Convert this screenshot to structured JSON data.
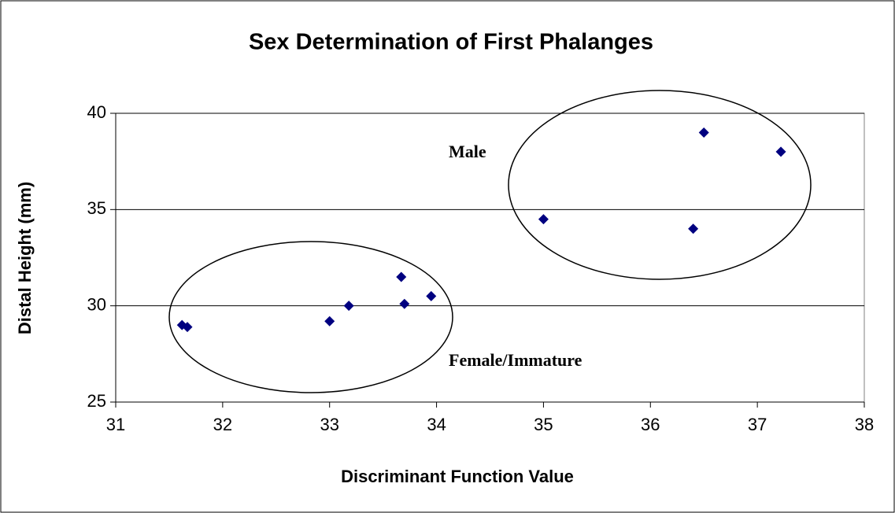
{
  "chart_data": {
    "type": "scatter",
    "title": "Sex Determination of First Phalanges",
    "x_label": "Discriminant Function Value",
    "y_label": "Distal Height (mm)",
    "annotations": [
      "Male",
      "Female/Immature"
    ],
    "x": [
      31.62,
      31.67,
      33.0,
      33.18,
      33.67,
      33.7,
      33.95,
      35.0,
      36.4,
      36.5,
      37.22
    ],
    "values": [
      29.0,
      28.9,
      29.2,
      30.0,
      31.5,
      30.1,
      30.5,
      34.5,
      34.0,
      39.0,
      38.0
    ],
    "color": "#000080",
    "xlim": [
      31,
      38
    ],
    "xticks": [
      31,
      32,
      33,
      34,
      35,
      36,
      37,
      38
    ],
    "ylim": [
      25,
      40
    ],
    "yticks": [
      25,
      30,
      35,
      40
    ],
    "grid": true
  }
}
